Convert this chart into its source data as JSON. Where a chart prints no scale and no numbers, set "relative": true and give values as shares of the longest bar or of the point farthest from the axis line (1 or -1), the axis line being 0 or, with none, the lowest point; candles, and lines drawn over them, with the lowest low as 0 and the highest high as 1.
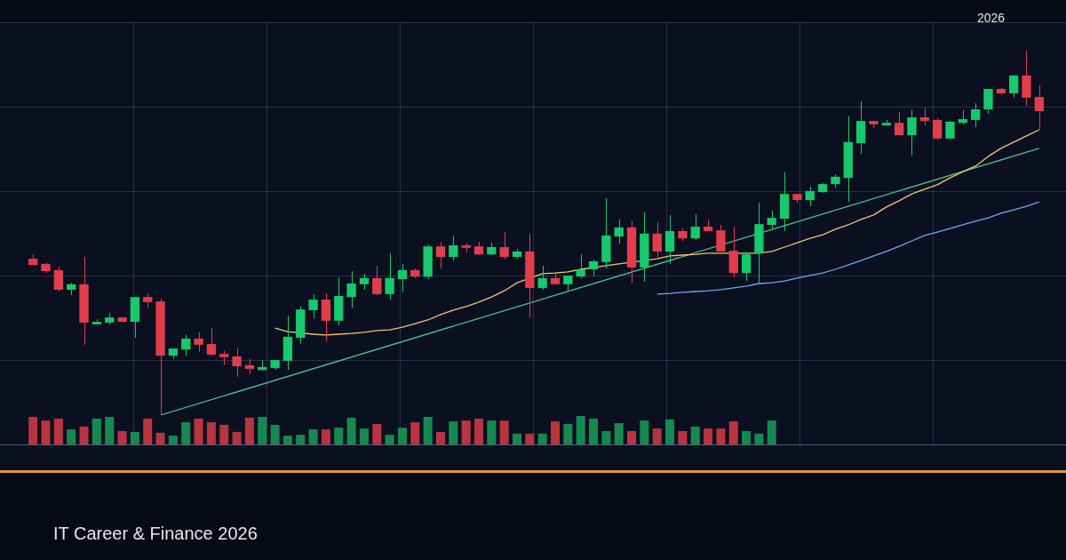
{
  "chart_data": [
    {
      "type": "candlestick",
      "relative": true,
      "grid": true,
      "subtitle": "IT Career & Finance 2026",
      "annotations": [
        "2026"
      ],
      "categories": [
        null,
        null,
        null,
        null,
        null,
        null,
        null,
        null,
        null,
        null,
        null,
        null,
        null,
        null,
        null,
        null,
        null,
        null,
        null,
        null,
        null,
        null,
        null,
        null,
        null,
        null,
        null,
        null,
        null,
        null,
        null,
        null,
        null,
        null,
        null,
        null,
        null,
        null,
        null,
        null,
        null,
        null,
        null,
        null,
        null,
        null,
        null,
        null,
        null,
        null,
        null,
        null,
        null,
        null,
        null,
        null,
        null,
        null,
        null,
        null,
        null,
        null,
        null,
        null,
        null,
        null,
        null,
        null,
        null,
        null,
        null,
        null,
        null,
        null,
        null,
        null,
        null,
        null,
        null,
        null
      ],
      "ohlc": [
        [
          0.429,
          0.441,
          0.412,
          0.412
        ],
        [
          0.415,
          0.417,
          0.39,
          0.395
        ],
        [
          0.398,
          0.407,
          0.339,
          0.344
        ],
        [
          0.344,
          0.363,
          0.329,
          0.359
        ],
        [
          0.359,
          0.434,
          0.193,
          0.254
        ],
        [
          0.249,
          0.263,
          0.249,
          0.256
        ],
        [
          0.254,
          0.28,
          0.249,
          0.268
        ],
        [
          0.268,
          0.268,
          0.254,
          0.256
        ],
        [
          0.256,
          0.324,
          0.212,
          0.324
        ],
        [
          0.324,
          0.334,
          0.295,
          0.31
        ],
        [
          0.312,
          0.32,
          0,
          0.163
        ],
        [
          0.163,
          0.183,
          0.154,
          0.183
        ],
        [
          0.18,
          0.22,
          0.163,
          0.21
        ],
        [
          0.21,
          0.227,
          0.173,
          0.193
        ],
        [
          0.195,
          0.239,
          0.163,
          0.166
        ],
        [
          0.168,
          0.176,
          0.137,
          0.159
        ],
        [
          0.161,
          0.183,
          0.105,
          0.134
        ],
        [
          0.137,
          0.154,
          0.112,
          0.127
        ],
        [
          0.124,
          0.151,
          0.122,
          0.132
        ],
        [
          0.129,
          0.151,
          0.124,
          0.151
        ],
        [
          0.149,
          0.273,
          0.124,
          0.215
        ],
        [
          0.212,
          0.298,
          0.195,
          0.29
        ],
        [
          0.288,
          0.332,
          0.266,
          0.317
        ],
        [
          0.317,
          0.334,
          0.202,
          0.259
        ],
        [
          0.259,
          0.378,
          0.246,
          0.327
        ],
        [
          0.324,
          0.395,
          0.295,
          0.361
        ],
        [
          0.359,
          0.388,
          0.344,
          0.376
        ],
        [
          0.376,
          0.41,
          0.329,
          0.332
        ],
        [
          0.332,
          0.444,
          0.317,
          0.376
        ],
        [
          0.373,
          0.415,
          0.339,
          0.398
        ],
        [
          0.398,
          0.402,
          0.376,
          0.38
        ],
        [
          0.38,
          0.468,
          0.373,
          0.463
        ],
        [
          0.463,
          0.476,
          0.402,
          0.434
        ],
        [
          0.434,
          0.493,
          0.424,
          0.466
        ],
        [
          0.466,
          0.471,
          0.446,
          0.459
        ],
        [
          0.463,
          0.476,
          0.439,
          0.441
        ],
        [
          0.441,
          0.473,
          0.439,
          0.461
        ],
        [
          0.461,
          0.502,
          0.427,
          0.434
        ],
        [
          0.434,
          0.456,
          0.429,
          0.449
        ],
        [
          0.449,
          0.498,
          0.268,
          0.349
        ],
        [
          0.349,
          0.41,
          0.344,
          0.376
        ],
        [
          0.376,
          0.388,
          0.359,
          0.359
        ],
        [
          0.359,
          0.383,
          0.341,
          0.383
        ],
        [
          0.38,
          0.441,
          0.376,
          0.4
        ],
        [
          0.4,
          0.427,
          0.38,
          0.422
        ],
        [
          0.42,
          0.595,
          0.402,
          0.493
        ],
        [
          0.49,
          0.537,
          0.471,
          0.515
        ],
        [
          0.515,
          0.532,
          0.363,
          0.405
        ],
        [
          0.405,
          0.556,
          0.366,
          0.498
        ],
        [
          0.498,
          0.529,
          0.432,
          0.449
        ],
        [
          0.449,
          0.549,
          0.415,
          0.505
        ],
        [
          0.505,
          0.512,
          0.478,
          0.485
        ],
        [
          0.485,
          0.551,
          0.48,
          0.517
        ],
        [
          0.517,
          0.537,
          0.505,
          0.505
        ],
        [
          0.507,
          0.522,
          0.449,
          0.449
        ],
        [
          0.451,
          0.517,
          0.378,
          0.39
        ],
        [
          0.39,
          0.446,
          0.368,
          0.441
        ],
        [
          0.444,
          0.583,
          0.359,
          0.524
        ],
        [
          0.522,
          0.561,
          0.51,
          0.541
        ],
        [
          0.539,
          0.666,
          0.505,
          0.607
        ],
        [
          0.607,
          0.607,
          0.583,
          0.59
        ],
        [
          0.59,
          0.627,
          0.573,
          0.615
        ],
        [
          0.612,
          0.637,
          0.61,
          0.634
        ],
        [
          0.634,
          0.661,
          0.624,
          0.654
        ],
        [
          0.651,
          0.82,
          0.585,
          0.749
        ],
        [
          0.746,
          0.861,
          0.717,
          0.807
        ],
        [
          0.807,
          0.807,
          0.788,
          0.798
        ],
        [
          0.795,
          0.81,
          0.795,
          0.802
        ],
        [
          0.802,
          0.832,
          0.768,
          0.768
        ],
        [
          0.768,
          0.837,
          0.712,
          0.817
        ],
        [
          0.817,
          0.844,
          0.795,
          0.807
        ],
        [
          0.81,
          0.815,
          0.754,
          0.759
        ],
        [
          0.759,
          0.807,
          0.756,
          0.805
        ],
        [
          0.802,
          0.837,
          0.798,
          0.812
        ],
        [
          0.81,
          0.856,
          0.79,
          0.839
        ],
        [
          0.839,
          0.895,
          0.827,
          0.895
        ],
        [
          0.895,
          0.898,
          0.878,
          0.883
        ],
        [
          0.883,
          0.932,
          0.871,
          0.932
        ],
        [
          0.932,
          1,
          0.849,
          0.871
        ],
        [
          0.873,
          0.905,
          0.783,
          0.834
        ]
      ],
      "colors": [
        "#e23d4b",
        "#e23d4b",
        "#e23d4b",
        "#16c96c",
        "#e23d4b",
        "#16c96c",
        "#16c96c",
        "#e23d4b",
        "#16c96c",
        "#e23d4b",
        "#e23d4b",
        "#16c96c",
        "#16c96c",
        "#e23d4b",
        "#e23d4b",
        "#e23d4b",
        "#e23d4b",
        "#e23d4b",
        "#16c96c",
        "#16c96c",
        "#16c96c",
        "#16c96c",
        "#16c96c",
        "#e23d4b",
        "#16c96c",
        "#16c96c",
        "#16c96c",
        "#e23d4b",
        "#16c96c",
        "#16c96c",
        "#e23d4b",
        "#16c96c",
        "#e23d4b",
        "#16c96c",
        "#e23d4b",
        "#e23d4b",
        "#16c96c",
        "#e23d4b",
        "#16c96c",
        "#e23d4b",
        "#16c96c",
        "#e23d4b",
        "#16c96c",
        "#16c96c",
        "#16c96c",
        "#16c96c",
        "#16c96c",
        "#e23d4b",
        "#16c96c",
        "#e23d4b",
        "#16c96c",
        "#e23d4b",
        "#16c96c",
        "#e23d4b",
        "#e23d4b",
        "#e23d4b",
        "#16c96c",
        "#16c96c",
        "#16c96c",
        "#16c96c",
        "#e23d4b",
        "#16c96c",
        "#16c96c",
        "#16c96c",
        "#16c96c",
        "#16c96c",
        "#e23d4b",
        "#16c96c",
        "#e23d4b",
        "#16c96c",
        "#e23d4b",
        "#e23d4b",
        "#16c96c",
        "#16c96c",
        "#16c96c",
        "#16c96c",
        "#e23d4b",
        "#16c96c",
        "#e23d4b",
        "#e23d4b"
      ],
      "series": [
        {
          "type": "line",
          "color": "#f5c46a",
          "values": [
            null,
            null,
            null,
            null,
            null,
            null,
            null,
            null,
            null,
            null,
            null,
            null,
            null,
            null,
            null,
            null,
            null,
            null,
            null,
            0.239,
            0.229,
            null,
            0.222,
            0.22,
            0.222,
            0.224,
            0.227,
            0.232,
            0.234,
            0.241,
            0.251,
            0.261,
            0.276,
            0.288,
            0.298,
            0.31,
            0.324,
            0.341,
            0.363,
            null,
            0.388,
            0.39,
            0.393,
            0.4,
            null,
            0.41,
            0.415,
            null,
            null,
            0.429,
            0.437,
            0.439,
            0.441,
            0.444,
            0.444,
            null,
            null,
            0.444,
            0.449,
            0.461,
            0.473,
            0.485,
            0.495,
            0.51,
            0.522,
            0.537,
            0.549,
            0.571,
            0.588,
            0.607,
            0.62,
            0.632,
            0.651,
            0.668,
            0.683,
            0.71,
            0.732,
            0.749,
            0.766,
            0.783
          ]
        },
        {
          "type": "line",
          "color": "#6ea4f2",
          "values": [
            null,
            null,
            null,
            null,
            null,
            null,
            null,
            null,
            null,
            null,
            null,
            null,
            null,
            null,
            null,
            null,
            null,
            null,
            null,
            null,
            null,
            null,
            null,
            null,
            null,
            null,
            null,
            null,
            null,
            null,
            null,
            null,
            null,
            null,
            null,
            null,
            null,
            null,
            null,
            null,
            null,
            null,
            null,
            null,
            null,
            null,
            null,
            null,
            null,
            0.332,
            0.334,
            0.337,
            0.339,
            0.341,
            0.344,
            0.349,
            0.354,
            0.361,
            0.363,
            0.368,
            0.376,
            0.383,
            0.39,
            0.4,
            0.412,
            0.424,
            0.437,
            0.449,
            0.463,
            0.478,
            0.493,
            0.502,
            0.512,
            0.522,
            0.532,
            0.541,
            0.554,
            0.563,
            0.573,
            0.585
          ]
        },
        {
          "type": "line",
          "color": "#4cc48a",
          "values": [
            null,
            null,
            null,
            null,
            null,
            null,
            null,
            null,
            null,
            null,
            0,
            null,
            null,
            null,
            null,
            null,
            null,
            null,
            null,
            null,
            null,
            null,
            null,
            null,
            null,
            null,
            null,
            null,
            null,
            null,
            null,
            null,
            null,
            null,
            null,
            null,
            null,
            null,
            null,
            null,
            null,
            null,
            null,
            null,
            null,
            null,
            null,
            null,
            null,
            null,
            null,
            null,
            null,
            null,
            null,
            null,
            null,
            null,
            null,
            null,
            null,
            null,
            null,
            null,
            null,
            null,
            null,
            null,
            null,
            null,
            null,
            null,
            null,
            null,
            null,
            null,
            null,
            null,
            null,
            0.732
          ]
        }
      ]
    },
    {
      "type": "bar",
      "relative": true,
      "categories": [
        null,
        null,
        null,
        null,
        null,
        null,
        null,
        null,
        null,
        null,
        null,
        null,
        null,
        null,
        null,
        null,
        null,
        null,
        null,
        null,
        null,
        null,
        null,
        null,
        null,
        null,
        null,
        null,
        null,
        null,
        null,
        null,
        null,
        null,
        null,
        null,
        null,
        null,
        null,
        null,
        null,
        null,
        null,
        null,
        null,
        null,
        null,
        null,
        null,
        null,
        null,
        null,
        null,
        null,
        null,
        null,
        null,
        null,
        null
      ],
      "values": [
        0.97,
        0.84,
        0.91,
        0.53,
        0.63,
        0.91,
        0.97,
        0.47,
        0.44,
        0.91,
        0.41,
        0.31,
        0.78,
        0.91,
        0.78,
        0.69,
        0.44,
        0.94,
        0.97,
        0.69,
        0.31,
        0.34,
        0.53,
        0.53,
        0.59,
        0.94,
        0.56,
        0.72,
        0.34,
        0.59,
        0.78,
        0.97,
        0.44,
        0.81,
        0.84,
        0.91,
        0.84,
        0.84,
        0.38,
        0.38,
        0.38,
        0.81,
        0.72,
        1,
        0.91,
        0.47,
        0.75,
        0.47,
        0.84,
        0.56,
        0.88,
        0.47,
        0.63,
        0.56,
        0.56,
        0.81,
        0.47,
        0.38,
        0.84
      ],
      "colors": [
        "#b8343f",
        "#b8343f",
        "#b8343f",
        "#16894f",
        "#b8343f",
        "#16894f",
        "#16894f",
        "#b8343f",
        "#16894f",
        "#b8343f",
        "#b8343f",
        "#16894f",
        "#16894f",
        "#b8343f",
        "#b8343f",
        "#b8343f",
        "#b8343f",
        "#b8343f",
        "#16894f",
        "#16894f",
        "#16894f",
        "#16894f",
        "#16894f",
        "#b8343f",
        "#16894f",
        "#16894f",
        "#16894f",
        "#b8343f",
        "#16894f",
        "#16894f",
        "#b8343f",
        "#16894f",
        "#b8343f",
        "#16894f",
        "#b8343f",
        "#b8343f",
        "#16894f",
        "#b8343f",
        "#16894f",
        "#b8343f",
        "#16894f",
        "#b8343f",
        "#16894f",
        "#16894f",
        "#16894f",
        "#16894f",
        "#16894f",
        "#b8343f",
        "#16894f",
        "#b8343f",
        "#16894f",
        "#b8343f",
        "#16894f",
        "#b8343f",
        "#b8343f",
        "#b8343f",
        "#16894f",
        "#16894f",
        "#16894f"
      ]
    }
  ]
}
